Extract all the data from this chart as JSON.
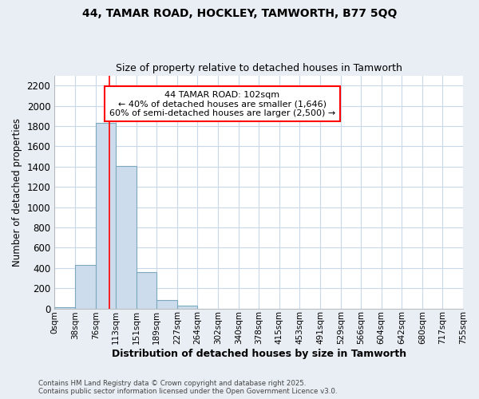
{
  "title1": "44, TAMAR ROAD, HOCKLEY, TAMWORTH, B77 5QQ",
  "title2": "Size of property relative to detached houses in Tamworth",
  "xlabel": "Distribution of detached houses by size in Tamworth",
  "ylabel": "Number of detached properties",
  "bin_edges": [
    0,
    38,
    76,
    113,
    151,
    189,
    227,
    264,
    302,
    340,
    378,
    415,
    453,
    491,
    529,
    566,
    604,
    642,
    680,
    717,
    755
  ],
  "bin_labels": [
    "0sqm",
    "38sqm",
    "76sqm",
    "113sqm",
    "151sqm",
    "189sqm",
    "227sqm",
    "264sqm",
    "302sqm",
    "340sqm",
    "378sqm",
    "415sqm",
    "453sqm",
    "491sqm",
    "529sqm",
    "566sqm",
    "604sqm",
    "642sqm",
    "680sqm",
    "717sqm",
    "755sqm"
  ],
  "counts": [
    10,
    430,
    1830,
    1410,
    360,
    80,
    25,
    0,
    0,
    0,
    0,
    0,
    0,
    0,
    0,
    0,
    0,
    0,
    0,
    0
  ],
  "bar_color": "#ccdcec",
  "bar_edgecolor": "#7baabf",
  "vline_x": 102,
  "vline_color": "red",
  "annotation_text": "44 TAMAR ROAD: 102sqm\n← 40% of detached houses are smaller (1,646)\n60% of semi-detached houses are larger (2,500) →",
  "ylim": [
    0,
    2300
  ],
  "yticks": [
    0,
    200,
    400,
    600,
    800,
    1000,
    1200,
    1400,
    1600,
    1800,
    2000,
    2200
  ],
  "footer1": "Contains HM Land Registry data © Crown copyright and database right 2025.",
  "footer2": "Contains public sector information licensed under the Open Government Licence v3.0.",
  "figure_facecolor": "#e8eef4",
  "axes_facecolor": "#ffffff",
  "grid_color": "#c8d8e8"
}
